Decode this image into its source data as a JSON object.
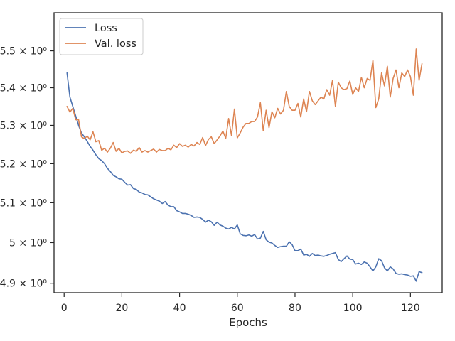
{
  "chart_data": {
    "type": "line",
    "title": "",
    "xlabel": "Epochs",
    "ylabel": "",
    "y_scale": "log",
    "grid": false,
    "legend_position": "top-left",
    "xlim": [
      -3.5,
      131
    ],
    "ylim": [
      4.877,
      5.605
    ],
    "x_ticks": [
      0,
      20,
      40,
      60,
      80,
      100,
      120
    ],
    "x_tick_labels": [
      "0",
      "20",
      "40",
      "60",
      "80",
      "100",
      "120"
    ],
    "y_ticks": [
      4.9,
      5.0,
      5.1,
      5.2,
      5.3,
      5.4,
      5.5
    ],
    "y_tick_labels": [
      "4.9 × 10⁰",
      "5 × 10⁰",
      "5.1 × 10⁰",
      "5.2 × 10⁰",
      "5.3 × 10⁰",
      "5.4 × 10⁰",
      "5.5 × 10⁰"
    ],
    "x": [
      1,
      2,
      3,
      4,
      5,
      6,
      7,
      8,
      9,
      10,
      11,
      12,
      13,
      14,
      15,
      16,
      17,
      18,
      19,
      20,
      21,
      22,
      23,
      24,
      25,
      26,
      27,
      28,
      29,
      30,
      31,
      32,
      33,
      34,
      35,
      36,
      37,
      38,
      39,
      40,
      41,
      42,
      43,
      44,
      45,
      46,
      47,
      48,
      49,
      50,
      51,
      52,
      53,
      54,
      55,
      56,
      57,
      58,
      59,
      60,
      61,
      62,
      63,
      64,
      65,
      66,
      67,
      68,
      69,
      70,
      71,
      72,
      73,
      74,
      75,
      76,
      77,
      78,
      79,
      80,
      81,
      82,
      83,
      84,
      85,
      86,
      87,
      88,
      89,
      90,
      91,
      92,
      93,
      94,
      95,
      96,
      97,
      98,
      99,
      100,
      101,
      102,
      103,
      104,
      105,
      106,
      107,
      108,
      109,
      110,
      111,
      112,
      113,
      114,
      115,
      116,
      117,
      118,
      119,
      120,
      121,
      122,
      123,
      124
    ],
    "series": [
      {
        "name": "Loss",
        "color": "#4c72b0",
        "values": [
          5.44,
          5.375,
          5.35,
          5.325,
          5.3,
          5.28,
          5.27,
          5.258,
          5.245,
          5.235,
          5.223,
          5.213,
          5.208,
          5.2,
          5.188,
          5.18,
          5.17,
          5.166,
          5.161,
          5.16,
          5.152,
          5.145,
          5.146,
          5.136,
          5.134,
          5.127,
          5.125,
          5.121,
          5.12,
          5.115,
          5.11,
          5.107,
          5.104,
          5.098,
          5.103,
          5.094,
          5.09,
          5.09,
          5.08,
          5.077,
          5.073,
          5.073,
          5.071,
          5.068,
          5.063,
          5.064,
          5.063,
          5.058,
          5.051,
          5.056,
          5.052,
          5.043,
          5.051,
          5.044,
          5.041,
          5.036,
          5.034,
          5.038,
          5.034,
          5.044,
          5.022,
          5.018,
          5.017,
          5.019,
          5.016,
          5.02,
          5.009,
          5.011,
          5.028,
          5.007,
          5.001,
          4.999,
          4.993,
          4.988,
          4.99,
          4.991,
          4.991,
          5.002,
          4.995,
          4.98,
          4.98,
          4.984,
          4.969,
          4.971,
          4.966,
          4.973,
          4.968,
          4.969,
          4.967,
          4.966,
          4.968,
          4.971,
          4.973,
          4.975,
          4.958,
          4.953,
          4.96,
          4.967,
          4.959,
          4.958,
          4.947,
          4.949,
          4.946,
          4.952,
          4.949,
          4.94,
          4.93,
          4.94,
          4.96,
          4.955,
          4.938,
          4.93,
          4.94,
          4.935,
          4.924,
          4.922,
          4.923,
          4.921,
          4.92,
          4.917,
          4.918,
          4.905,
          4.928,
          4.926
        ]
      },
      {
        "name": "Val. loss",
        "color": "#dd8452",
        "values": [
          5.35,
          5.335,
          5.345,
          5.315,
          5.315,
          5.27,
          5.265,
          5.272,
          5.262,
          5.283,
          5.257,
          5.26,
          5.235,
          5.24,
          5.23,
          5.24,
          5.255,
          5.232,
          5.24,
          5.228,
          5.232,
          5.233,
          5.227,
          5.235,
          5.232,
          5.242,
          5.23,
          5.234,
          5.23,
          5.234,
          5.238,
          5.23,
          5.237,
          5.234,
          5.234,
          5.24,
          5.236,
          5.248,
          5.242,
          5.252,
          5.245,
          5.248,
          5.243,
          5.25,
          5.246,
          5.255,
          5.25,
          5.268,
          5.247,
          5.263,
          5.27,
          5.252,
          5.262,
          5.272,
          5.285,
          5.266,
          5.318,
          5.273,
          5.343,
          5.267,
          5.28,
          5.295,
          5.305,
          5.305,
          5.31,
          5.31,
          5.322,
          5.36,
          5.286,
          5.34,
          5.294,
          5.336,
          5.32,
          5.345,
          5.33,
          5.34,
          5.39,
          5.35,
          5.34,
          5.34,
          5.358,
          5.322,
          5.37,
          5.336,
          5.39,
          5.365,
          5.355,
          5.365,
          5.375,
          5.37,
          5.395,
          5.38,
          5.42,
          5.35,
          5.415,
          5.4,
          5.395,
          5.398,
          5.418,
          5.382,
          5.4,
          5.39,
          5.428,
          5.4,
          5.425,
          5.42,
          5.474,
          5.347,
          5.37,
          5.44,
          5.405,
          5.458,
          5.375,
          5.425,
          5.448,
          5.4,
          5.44,
          5.43,
          5.448,
          5.43,
          5.38,
          5.505,
          5.42,
          5.465
        ]
      }
    ]
  }
}
